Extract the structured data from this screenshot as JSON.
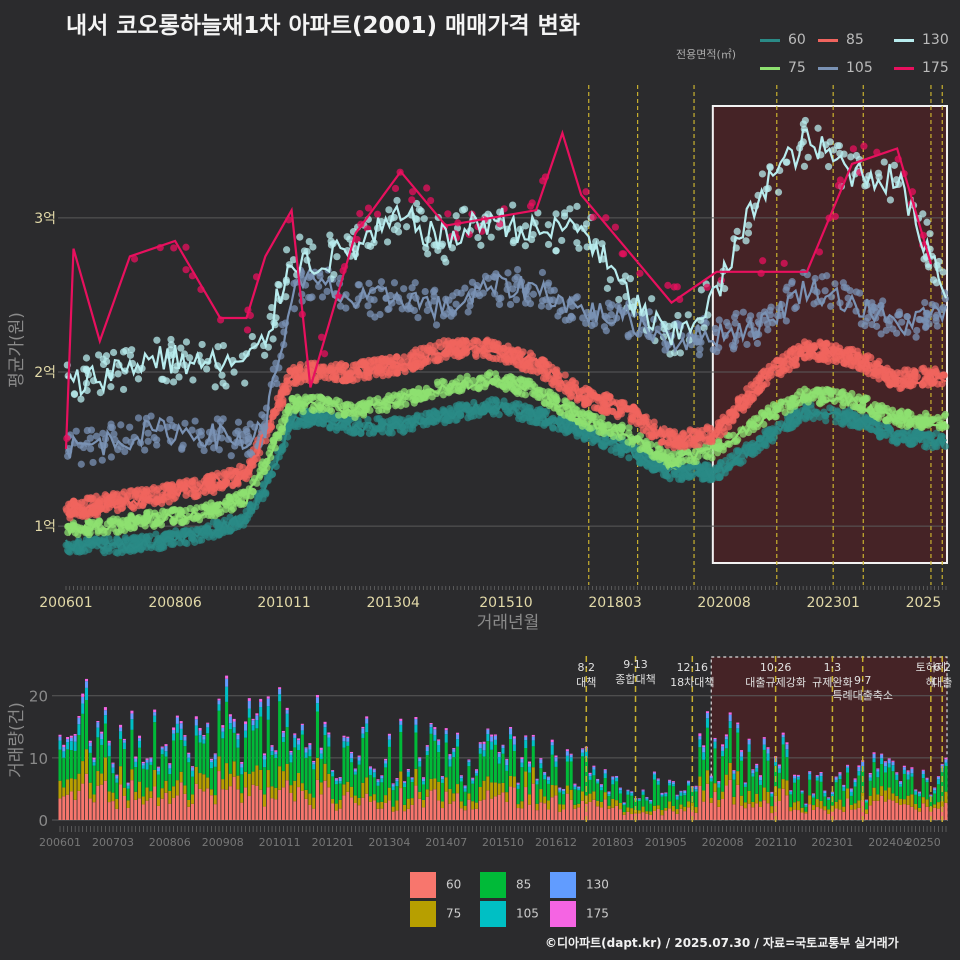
{
  "title": "내서 코오롱하늘채1차 아파트(2001) 매매가격 변화",
  "credit": "©디아파트(dapt.kr) / 2025.07.30 / 자료=국토교통부 실거래가",
  "colors": {
    "background": "#2b2b2d",
    "highlight_box": "#4a2226",
    "policy_line": "#c9b12f",
    "grid": "#5a5a5a"
  },
  "legend_top": {
    "title": "전용면적(㎡)",
    "items": [
      {
        "label": "60",
        "color": "#2a8a86"
      },
      {
        "label": "85",
        "color": "#f0645e"
      },
      {
        "label": "130",
        "color": "#b8ecee"
      },
      {
        "label": "75",
        "color": "#8ee070"
      },
      {
        "label": "105",
        "color": "#7a92b4"
      },
      {
        "label": "175",
        "color": "#e8105e"
      }
    ]
  },
  "legend_bottom": {
    "items": [
      {
        "label": "60",
        "color": "#f8766d"
      },
      {
        "label": "85",
        "color": "#00ba38"
      },
      {
        "label": "130",
        "color": "#619cff"
      },
      {
        "label": "75",
        "color": "#b79f00"
      },
      {
        "label": "105",
        "color": "#00bfc4"
      },
      {
        "label": "175",
        "color": "#f564e3"
      }
    ]
  },
  "chart_data": [
    {
      "type": "line",
      "xlabel": "거래년월",
      "ylabel": "평균가(원)",
      "x_range": [
        "2006-01",
        "2025-07"
      ],
      "x_ticks": [
        "200601",
        "200806",
        "201011",
        "201304",
        "201510",
        "201803",
        "202008",
        "202301",
        "2025"
      ],
      "ylim": [
        0.65,
        3.7
      ],
      "y_ticks": [
        {
          "value": 1,
          "label": "1억"
        },
        {
          "value": 2,
          "label": "2억"
        },
        {
          "value": 3,
          "label": "3억"
        }
      ],
      "grid": true,
      "legend_placement": "top-right",
      "highlight_range": [
        "2020-05",
        "2025-07"
      ],
      "policy_lines": [
        "2017-08",
        "2018-09",
        "2019-12",
        "2021-10",
        "2023-01",
        "2023-09",
        "2025-03",
        "2025-06"
      ],
      "series": [
        {
          "name": "60",
          "color": "#2a8a86",
          "x": [
            "2006-01",
            "2007-01",
            "2008-01",
            "2009-01",
            "2010-01",
            "2010-06",
            "2011-01",
            "2011-06",
            "2012-06",
            "2013-06",
            "2014-06",
            "2015-06",
            "2016-06",
            "2017-06",
            "2018-06",
            "2019-06",
            "2020-06",
            "2021-06",
            "2022-06",
            "2023-06",
            "2024-06",
            "2025-07"
          ],
          "values": [
            0.88,
            0.87,
            0.9,
            0.95,
            1.05,
            1.25,
            1.68,
            1.7,
            1.65,
            1.65,
            1.72,
            1.78,
            1.72,
            1.62,
            1.5,
            1.35,
            1.35,
            1.55,
            1.75,
            1.7,
            1.58,
            1.55
          ]
        },
        {
          "name": "75",
          "color": "#8ee070",
          "x": [
            "2006-01",
            "2007-01",
            "2008-01",
            "2009-01",
            "2010-01",
            "2010-06",
            "2011-01",
            "2011-06",
            "2012-06",
            "2013-06",
            "2014-06",
            "2015-06",
            "2016-06",
            "2017-06",
            "2018-06",
            "2019-06",
            "2020-06",
            "2021-06",
            "2022-06",
            "2023-06",
            "2024-06",
            "2025-07"
          ],
          "values": [
            0.98,
            1.0,
            1.05,
            1.08,
            1.18,
            1.4,
            1.78,
            1.8,
            1.75,
            1.82,
            1.9,
            1.95,
            1.88,
            1.7,
            1.6,
            1.42,
            1.5,
            1.7,
            1.85,
            1.82,
            1.7,
            1.68
          ]
        },
        {
          "name": "85",
          "color": "#f0645e",
          "x": [
            "2006-01",
            "2007-01",
            "2008-01",
            "2009-01",
            "2010-01",
            "2010-06",
            "2011-01",
            "2011-06",
            "2012-06",
            "2013-06",
            "2014-06",
            "2015-06",
            "2016-06",
            "2017-06",
            "2018-06",
            "2019-06",
            "2020-06",
            "2021-06",
            "2022-06",
            "2023-06",
            "2024-06",
            "2025-07"
          ],
          "values": [
            1.1,
            1.15,
            1.2,
            1.25,
            1.35,
            1.6,
            1.98,
            2.0,
            2.0,
            2.05,
            2.15,
            2.15,
            2.05,
            1.85,
            1.75,
            1.55,
            1.6,
            1.95,
            2.15,
            2.1,
            1.95,
            1.98
          ]
        },
        {
          "name": "105",
          "color": "#7a92b4",
          "x": [
            "2006-01",
            "2007-01",
            "2008-01",
            "2009-01",
            "2010-01",
            "2010-06",
            "2011-01",
            "2011-06",
            "2012-06",
            "2013-06",
            "2014-06",
            "2015-06",
            "2016-06",
            "2017-06",
            "2018-06",
            "2019-06",
            "2020-06",
            "2021-06",
            "2022-06",
            "2023-06",
            "2024-06",
            "2025-07"
          ],
          "values": [
            1.5,
            1.55,
            1.62,
            1.6,
            1.55,
            1.65,
            2.5,
            2.6,
            2.45,
            2.5,
            2.4,
            2.55,
            2.55,
            2.4,
            2.35,
            2.2,
            2.25,
            2.3,
            2.55,
            2.45,
            2.3,
            2.4
          ]
        },
        {
          "name": "130",
          "color": "#b8ecee",
          "x": [
            "2006-01",
            "2007-01",
            "2008-01",
            "2009-01",
            "2010-01",
            "2010-06",
            "2011-01",
            "2011-06",
            "2012-06",
            "2013-06",
            "2014-06",
            "2015-06",
            "2016-06",
            "2017-06",
            "2018-06",
            "2019-06",
            "2020-06",
            "2021-06",
            "2022-06",
            "2023-06",
            "2024-06",
            "2025-07"
          ],
          "values": [
            1.9,
            2.0,
            2.1,
            2.05,
            2.05,
            2.2,
            2.75,
            2.7,
            2.8,
            3.0,
            2.85,
            3.0,
            2.9,
            2.95,
            2.5,
            2.2,
            2.5,
            3.2,
            3.5,
            3.3,
            3.25,
            2.55
          ]
        },
        {
          "name": "175",
          "color": "#e8105e",
          "x": [
            "2006-01",
            "2006-03",
            "2006-10",
            "2007-06",
            "2008-06",
            "2009-06",
            "2010-01",
            "2010-06",
            "2011-01",
            "2011-06",
            "2012-06",
            "2013-06",
            "2014-06",
            "2015-06",
            "2016-06",
            "2017-01",
            "2017-06",
            "2018-06",
            "2019-06",
            "2020-06",
            "2022-06",
            "2023-06",
            "2024-06",
            "2025-03"
          ],
          "values": [
            1.5,
            2.8,
            2.2,
            2.75,
            2.85,
            2.35,
            2.35,
            2.75,
            3.05,
            1.9,
            2.9,
            3.3,
            2.95,
            3.0,
            3.05,
            3.55,
            3.15,
            2.8,
            2.45,
            2.65,
            2.65,
            3.35,
            3.45,
            2.7
          ]
        }
      ]
    },
    {
      "type": "bar",
      "stacked": true,
      "ylabel": "거래량(건)",
      "x_range": [
        "2006-01",
        "2025-07"
      ],
      "x_ticks": [
        "200601",
        "200703",
        "200806",
        "200908",
        "201011",
        "201201",
        "201304",
        "201407",
        "201510",
        "201612",
        "201803",
        "201905",
        "202008",
        "202110",
        "202301",
        "202404",
        "20250"
      ],
      "ylim": [
        0,
        28
      ],
      "y_ticks": [
        0,
        10,
        20
      ],
      "grid": true,
      "highlight_range": [
        "2020-05",
        "2025-07"
      ],
      "annotations": [
        {
          "date": "2017-08",
          "label": "8·2 대책"
        },
        {
          "date": "2018-09",
          "label": "9·13 종합대책"
        },
        {
          "date": "2019-12",
          "label": "12·16 18차대책"
        },
        {
          "date": "2021-10",
          "label": "10·26 대출규제강화"
        },
        {
          "date": "2023-01",
          "label": "1·3 규제완화"
        },
        {
          "date": "2023-09",
          "label": "9·7 특례대출축소"
        },
        {
          "date": "2025-03",
          "label": "토허제 해"
        },
        {
          "date": "2025-06",
          "label": "6·2 대출"
        }
      ],
      "series_names": [
        "60",
        "75",
        "85",
        "105",
        "130",
        "175"
      ],
      "monthly_total_profile": [
        {
          "period": "2006",
          "avg": 16
        },
        {
          "period": "2007",
          "avg": 13
        },
        {
          "period": "2008",
          "avg": 14
        },
        {
          "period": "2009",
          "avg": 17
        },
        {
          "period": "2010",
          "avg": 14
        },
        {
          "period": "2011",
          "avg": 12
        },
        {
          "period": "2012",
          "avg": 10
        },
        {
          "period": "2013",
          "avg": 10
        },
        {
          "period": "2014",
          "avg": 11
        },
        {
          "period": "2015",
          "avg": 12
        },
        {
          "period": "2016",
          "avg": 10
        },
        {
          "period": "2017",
          "avg": 8
        },
        {
          "period": "2018",
          "avg": 5
        },
        {
          "period": "2019",
          "avg": 6
        },
        {
          "period": "2020",
          "avg": 12
        },
        {
          "period": "2021",
          "avg": 10
        },
        {
          "period": "2022",
          "avg": 6
        },
        {
          "period": "2023",
          "avg": 8
        },
        {
          "period": "2024",
          "avg": 8
        },
        {
          "period": "2025",
          "avg": 7
        }
      ]
    }
  ]
}
